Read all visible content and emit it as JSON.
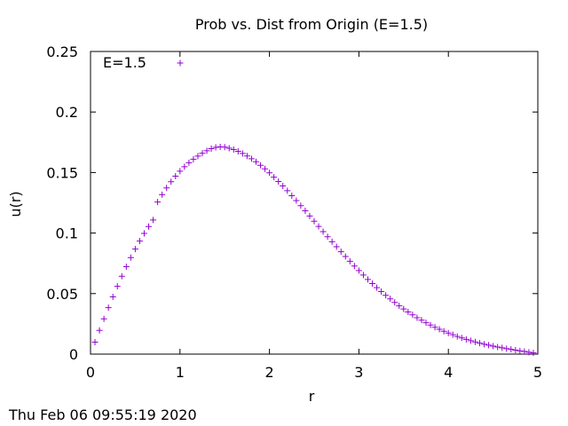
{
  "chart_data": {
    "type": "scatter",
    "title": "Prob vs. Dist from Origin (E=1.5)",
    "xlabel": "r",
    "ylabel": "u(r)",
    "xlim": [
      0,
      5
    ],
    "ylim": [
      0,
      0.25
    ],
    "x_ticks": [
      "0",
      "1",
      "2",
      "3",
      "4",
      "5"
    ],
    "y_ticks": [
      "0",
      "0.05",
      "0.1",
      "0.15",
      "0.2",
      "0.25"
    ],
    "grid": false,
    "legend_position": "top-left",
    "series": [
      {
        "name": "E=1.5",
        "color": "#9400d3",
        "marker": "plus",
        "x": [
          0.05,
          0.1,
          0.15,
          0.2,
          0.25,
          0.3,
          0.35,
          0.4,
          0.45,
          0.5,
          0.55,
          0.6,
          0.65,
          0.7,
          0.75,
          0.8,
          0.85,
          0.9,
          0.95,
          1.0,
          1.05,
          1.1,
          1.15,
          1.2,
          1.25,
          1.3,
          1.35,
          1.4,
          1.45,
          1.5,
          1.55,
          1.6,
          1.65,
          1.7,
          1.75,
          1.8,
          1.85,
          1.9,
          1.95,
          2.0,
          2.05,
          2.1,
          2.15,
          2.2,
          2.25,
          2.3,
          2.35,
          2.4,
          2.45,
          2.5,
          2.55,
          2.6,
          2.65,
          2.7,
          2.75,
          2.8,
          2.85,
          2.9,
          2.95,
          3.0,
          3.05,
          3.1,
          3.15,
          3.2,
          3.25,
          3.3,
          3.35,
          3.4,
          3.45,
          3.5,
          3.55,
          3.6,
          3.65,
          3.7,
          3.75,
          3.8,
          3.85,
          3.9,
          3.95,
          4.0,
          4.05,
          4.1,
          4.15,
          4.2,
          4.25,
          4.3,
          4.35,
          4.4,
          4.45,
          4.5,
          4.55,
          4.6,
          4.65,
          4.7,
          4.75,
          4.8,
          4.85,
          4.9,
          4.95
        ],
        "y": [
          0.0099,
          0.0196,
          0.0291,
          0.0384,
          0.0473,
          0.056,
          0.0643,
          0.0722,
          0.0797,
          0.0868,
          0.0934,
          0.0997,
          0.1054,
          0.1108,
          0.1256,
          0.1317,
          0.1373,
          0.1424,
          0.147,
          0.1511,
          0.1548,
          0.1581,
          0.161,
          0.1636,
          0.166,
          0.168,
          0.1697,
          0.1708,
          0.1712,
          0.171,
          0.1701,
          0.169,
          0.1675,
          0.1658,
          0.1637,
          0.1614,
          0.1589,
          0.156,
          0.153,
          0.1497,
          0.1462,
          0.1426,
          0.1389,
          0.135,
          0.1309,
          0.1268,
          0.1226,
          0.1184,
          0.1141,
          0.1098,
          0.1055,
          0.1012,
          0.097,
          0.0928,
          0.0887,
          0.0846,
          0.0806,
          0.0767,
          0.0728,
          0.069,
          0.0653,
          0.0617,
          0.0583,
          0.0549,
          0.0517,
          0.0486,
          0.0456,
          0.0427,
          0.0399,
          0.0373,
          0.0348,
          0.0324,
          0.0301,
          0.028,
          0.0259,
          0.024,
          0.0222,
          0.0205,
          0.0189,
          0.0174,
          0.016,
          0.0146,
          0.0134,
          0.0122,
          0.0111,
          0.0101,
          0.0091,
          0.0082,
          0.0074,
          0.0066,
          0.0059,
          0.0052,
          0.0045,
          0.0039,
          0.0033,
          0.0027,
          0.0022,
          0.0016,
          0.001
        ]
      }
    ]
  },
  "timestamp": "Thu Feb 06 09:55:19 2020"
}
